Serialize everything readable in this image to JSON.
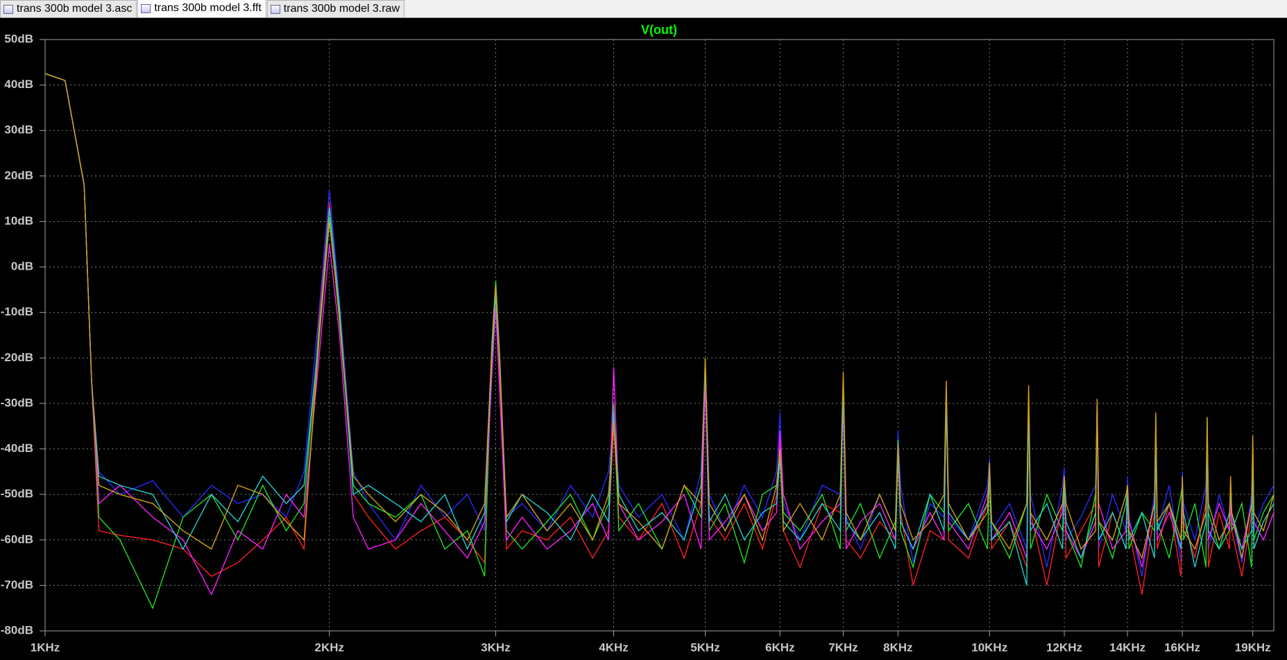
{
  "tabs": [
    "trans 300b model 3.asc",
    "trans 300b model 3.fft",
    "trans 300b model 3.raw"
  ],
  "chart_data": {
    "type": "line",
    "title": "V(out)",
    "title_color": "#00ff00",
    "xscale": "log",
    "grid": true,
    "xlim": [
      1000,
      20000
    ],
    "ylim": [
      -80,
      50
    ],
    "xticks": [
      {
        "value": 1000,
        "label": "1KHz"
      },
      {
        "value": 2000,
        "label": "2KHz"
      },
      {
        "value": 3000,
        "label": "3KHz"
      },
      {
        "value": 4000,
        "label": "4KHz"
      },
      {
        "value": 5000,
        "label": "5KHz"
      },
      {
        "value": 6000,
        "label": "6KHz"
      },
      {
        "value": 7000,
        "label": "7KHz"
      },
      {
        "value": 8000,
        "label": "8KHz"
      },
      {
        "value": 10000,
        "label": "10KHz"
      },
      {
        "value": 12000,
        "label": "12KHz"
      },
      {
        "value": 14000,
        "label": "14KHz"
      },
      {
        "value": 16000,
        "label": "16KHz"
      },
      {
        "value": 19000,
        "label": "19KHz"
      }
    ],
    "yticks": [
      {
        "value": 50,
        "label": "50dB"
      },
      {
        "value": 40,
        "label": "40dB"
      },
      {
        "value": 30,
        "label": "30dB"
      },
      {
        "value": 20,
        "label": "20dB"
      },
      {
        "value": 10,
        "label": "10dB"
      },
      {
        "value": 0,
        "label": "0dB"
      },
      {
        "value": -10,
        "label": "-10dB"
      },
      {
        "value": -20,
        "label": "-20dB"
      },
      {
        "value": -30,
        "label": "-30dB"
      },
      {
        "value": -40,
        "label": "-40dB"
      },
      {
        "value": -50,
        "label": "-50dB"
      },
      {
        "value": -60,
        "label": "-60dB"
      },
      {
        "value": -70,
        "label": "-70dB"
      },
      {
        "value": -80,
        "label": "-80dB"
      }
    ],
    "x": [
      1000,
      1050,
      1100,
      1120,
      1140,
      1200,
      1300,
      1400,
      1500,
      1600,
      1700,
      1800,
      1880,
      1950,
      2000,
      2050,
      2120,
      2200,
      2350,
      2500,
      2650,
      2800,
      2920,
      2970,
      3000,
      3030,
      3080,
      3200,
      3400,
      3600,
      3800,
      3950,
      4000,
      4050,
      4250,
      4500,
      4750,
      4950,
      5000,
      5050,
      5250,
      5500,
      5750,
      5950,
      6000,
      6050,
      6300,
      6650,
      6950,
      7000,
      7050,
      7300,
      7650,
      7950,
      8000,
      8050,
      8300,
      8650,
      8950,
      9000,
      9050,
      9500,
      9950,
      10000,
      10050,
      10500,
      10950,
      11000,
      11050,
      11500,
      11950,
      12000,
      12050,
      12500,
      12950,
      13000,
      13050,
      13500,
      13950,
      14000,
      14050,
      14500,
      14950,
      15000,
      15050,
      15500,
      15950,
      16000,
      16050,
      16500,
      16950,
      17000,
      17050,
      17500,
      17950,
      18000,
      18050,
      18500,
      18950,
      19000,
      19050,
      19500,
      20000
    ],
    "series": [
      {
        "color": "#2a2aff",
        "values": [
          42.5,
          41,
          18,
          -25,
          -45,
          -50,
          -47,
          -55,
          -48,
          -52,
          -50,
          -55,
          -45,
          -10,
          17,
          -8,
          -45,
          -52,
          -60,
          -48,
          -55,
          -50,
          -58,
          -20,
          -8,
          -25,
          -55,
          -52,
          -58,
          -48,
          -55,
          -45,
          -33,
          -48,
          -55,
          -50,
          -60,
          -45,
          -21,
          -50,
          -58,
          -48,
          -55,
          -45,
          -32,
          -52,
          -60,
          -48,
          -50,
          -24,
          -55,
          -62,
          -50,
          -58,
          -36,
          -48,
          -65,
          -52,
          -55,
          -27,
          -55,
          -60,
          -48,
          -42,
          -58,
          -52,
          -62,
          -27,
          -50,
          -66,
          -48,
          -44,
          -60,
          -55,
          -48,
          -29,
          -62,
          -50,
          -58,
          -46,
          -55,
          -68,
          -50,
          -34,
          -58,
          -48,
          -65,
          -45,
          -52,
          -60,
          -48,
          -35,
          -62,
          -50,
          -58,
          -47,
          -55,
          -65,
          -50,
          -37,
          -58,
          -52,
          -48
        ]
      },
      {
        "color": "#ff2020",
        "values": [
          42.5,
          41,
          18,
          -25,
          -58,
          -59,
          -60,
          -62,
          -68,
          -65,
          -60,
          -55,
          -62,
          -12,
          14,
          -10,
          -50,
          -55,
          -62,
          -58,
          -55,
          -60,
          -65,
          -22,
          -5,
          -24,
          -62,
          -58,
          -60,
          -55,
          -64,
          -58,
          -35,
          -55,
          -60,
          -52,
          -64,
          -52,
          -22,
          -55,
          -60,
          -52,
          -62,
          -50,
          -38,
          -58,
          -66,
          -52,
          -54,
          -26,
          -60,
          -64,
          -56,
          -60,
          -40,
          -54,
          -70,
          -58,
          -60,
          -28,
          -60,
          -64,
          -52,
          -45,
          -62,
          -56,
          -66,
          -27,
          -54,
          -70,
          -52,
          -48,
          -64,
          -58,
          -52,
          -30,
          -66,
          -54,
          -62,
          -50,
          -58,
          -72,
          -54,
          -34,
          -62,
          -52,
          -68,
          -48,
          -56,
          -64,
          -52,
          -36,
          -66,
          -54,
          -62,
          -50,
          -58,
          -68,
          -54,
          -40,
          -62,
          -56,
          -52
        ]
      },
      {
        "color": "#20e020",
        "values": [
          42.5,
          41,
          18,
          -25,
          -55,
          -60,
          -75,
          -55,
          -50,
          -60,
          -48,
          -58,
          -52,
          -14,
          11,
          -12,
          -48,
          -52,
          -55,
          -50,
          -62,
          -58,
          -68,
          -18,
          -3,
          -20,
          -58,
          -62,
          -56,
          -50,
          -60,
          -52,
          -30,
          -58,
          -52,
          -62,
          -48,
          -55,
          -20,
          -58,
          -52,
          -65,
          -50,
          -48,
          -40,
          -54,
          -58,
          -50,
          -62,
          -25,
          -58,
          -52,
          -64,
          -56,
          -38,
          -58,
          -66,
          -50,
          -54,
          -28,
          -58,
          -52,
          -62,
          -44,
          -56,
          -64,
          -52,
          -28,
          -62,
          -50,
          -58,
          -46,
          -58,
          -66,
          -50,
          -31,
          -56,
          -64,
          -52,
          -48,
          -62,
          -54,
          -58,
          -33,
          -56,
          -64,
          -50,
          -48,
          -60,
          -52,
          -66,
          -33,
          -54,
          -62,
          -58,
          -48,
          -58,
          -52,
          -66,
          -38,
          -60,
          -54,
          -50
        ]
      },
      {
        "color": "#ff20ff",
        "values": [
          42.5,
          41,
          18,
          -25,
          -52,
          -48,
          -55,
          -60,
          -72,
          -58,
          -62,
          -50,
          -55,
          -20,
          5,
          -15,
          -55,
          -62,
          -60,
          -52,
          -58,
          -64,
          -56,
          -25,
          -9,
          -28,
          -60,
          -55,
          -62,
          -58,
          -52,
          -60,
          -22,
          -52,
          -60,
          -56,
          -50,
          -62,
          -25,
          -60,
          -56,
          -50,
          -58,
          -54,
          -36,
          -50,
          -62,
          -56,
          -52,
          -30,
          -62,
          -56,
          -52,
          -60,
          -42,
          -56,
          -62,
          -54,
          -60,
          -29,
          -56,
          -62,
          -50,
          -46,
          -60,
          -54,
          -64,
          -29,
          -56,
          -62,
          -54,
          -47,
          -58,
          -64,
          -56,
          -29,
          -52,
          -62,
          -58,
          -48,
          -56,
          -66,
          -52,
          -36,
          -60,
          -54,
          -62,
          -50,
          -58,
          -62,
          -54,
          -37,
          -60,
          -52,
          -58,
          -50,
          -56,
          -62,
          -52,
          -39,
          -56,
          -60,
          -54
        ]
      },
      {
        "color": "#20d0d0",
        "values": [
          42.5,
          41,
          18,
          -25,
          -46,
          -48,
          -50,
          -62,
          -50,
          -56,
          -46,
          -52,
          -48,
          -15,
          13,
          -9,
          -50,
          -48,
          -52,
          -56,
          -50,
          -62,
          -54,
          -21,
          -6,
          -22,
          -56,
          -50,
          -54,
          -60,
          -50,
          -56,
          -32,
          -50,
          -58,
          -54,
          -60,
          -48,
          -22,
          -56,
          -50,
          -60,
          -54,
          -52,
          -42,
          -56,
          -60,
          -52,
          -58,
          -27,
          -56,
          -60,
          -54,
          -62,
          -40,
          -56,
          -62,
          -50,
          -58,
          -29,
          -54,
          -60,
          -52,
          -45,
          -60,
          -56,
          -70,
          -29,
          -58,
          -52,
          -62,
          -47,
          -56,
          -64,
          -54,
          -31,
          -60,
          -54,
          -62,
          -49,
          -60,
          -54,
          -64,
          -35,
          -58,
          -52,
          -62,
          -48,
          -54,
          -66,
          -56,
          -36,
          -58,
          -62,
          -54,
          -49,
          -54,
          -62,
          -58,
          -40,
          -62,
          -56,
          -52
        ]
      },
      {
        "color": "#d4a017",
        "values": [
          42.5,
          41,
          18,
          -25,
          -48,
          -50,
          -52,
          -58,
          -62,
          -48,
          -50,
          -56,
          -60,
          -16,
          10,
          -11,
          -46,
          -50,
          -56,
          -50,
          -54,
          -60,
          -52,
          -19,
          -4,
          -21,
          -55,
          -50,
          -58,
          -52,
          -60,
          -50,
          -34,
          -52,
          -56,
          -62,
          -48,
          -52,
          -20,
          -52,
          -58,
          -50,
          -60,
          -48,
          -40,
          -58,
          -52,
          -60,
          -50,
          -23,
          -54,
          -60,
          -50,
          -58,
          -39,
          -52,
          -60,
          -56,
          -50,
          -25,
          -52,
          -60,
          -54,
          -43,
          -56,
          -62,
          -52,
          -26,
          -54,
          -60,
          -52,
          -46,
          -52,
          -62,
          -58,
          -29,
          -56,
          -60,
          -50,
          -48,
          -58,
          -64,
          -52,
          -32,
          -56,
          -52,
          -60,
          -46,
          -58,
          -62,
          -54,
          -33,
          -52,
          -60,
          -56,
          -46,
          -54,
          -64,
          -52,
          -37,
          -54,
          -58,
          -50
        ]
      }
    ]
  }
}
